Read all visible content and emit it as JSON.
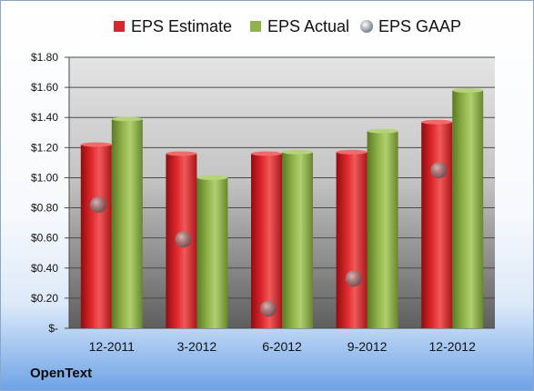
{
  "chart_data": {
    "type": "bar",
    "title": "",
    "xlabel": "",
    "ylabel": "",
    "categories": [
      "12-2011",
      "3-2012",
      "6-2012",
      "9-2012",
      "12-2012"
    ],
    "series": [
      {
        "name": "EPS Estimate",
        "kind": "bar",
        "color": "#e0282c",
        "values": [
          1.22,
          1.16,
          1.16,
          1.17,
          1.37
        ]
      },
      {
        "name": "EPS Actual",
        "kind": "bar",
        "color": "#8fb34a",
        "values": [
          1.39,
          1.0,
          1.17,
          1.31,
          1.58
        ]
      },
      {
        "name": "EPS GAAP",
        "kind": "marker",
        "color": "#a9b2bd",
        "values": [
          0.82,
          0.59,
          0.13,
          0.33,
          1.05
        ]
      }
    ],
    "ylim": [
      0,
      1.8
    ],
    "yticks": [
      0,
      0.2,
      0.4,
      0.6,
      0.8,
      1.0,
      1.2,
      1.4,
      1.6,
      1.8
    ],
    "ytick_labels": [
      "$-",
      "$0.20",
      "$0.40",
      "$0.60",
      "$0.80",
      "$1.00",
      "$1.20",
      "$1.40",
      "$1.60",
      "$1.80"
    ],
    "grid": true,
    "legend_position": "top"
  },
  "footer": {
    "company": "OpenText"
  }
}
